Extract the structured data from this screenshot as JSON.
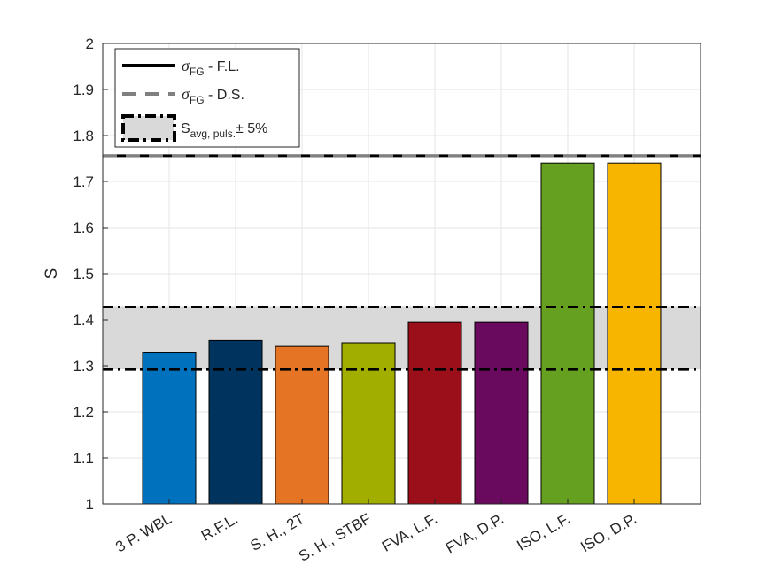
{
  "chart_data": {
    "type": "bar",
    "ylabel": "S",
    "ylim": [
      1,
      2
    ],
    "yticks": [
      1,
      1.1,
      1.2,
      1.3,
      1.4,
      1.5,
      1.6,
      1.7,
      1.8,
      1.9,
      2
    ],
    "ytick_labels": [
      "1",
      "1.1",
      "1.2",
      "1.3",
      "1.4",
      "1.5",
      "1.6",
      "1.7",
      "1.8",
      "1.9",
      "2"
    ],
    "grid": true,
    "categories": [
      "3 P. WBL",
      "R.F.L.",
      "S. H., 2T",
      "S. H., STBF",
      "FVA, L.F.",
      "FVA, D.P.",
      "ISO, L.F.",
      "ISO, D.P."
    ],
    "values": [
      1.328,
      1.355,
      1.342,
      1.35,
      1.394,
      1.394,
      1.74,
      1.74
    ],
    "bar_colors": [
      "#0072BD",
      "#00335E",
      "#E57525",
      "#A1AE00",
      "#9A0F1A",
      "#6A0A5E",
      "#66A020",
      "#F7B500"
    ],
    "reference_lines": [
      {
        "name": "σFG - F.L.",
        "value": 1.756,
        "style": "solid",
        "color": "#000000"
      },
      {
        "name": "σFG - D.S.",
        "value": 1.756,
        "style": "dashed",
        "color": "#808080"
      }
    ],
    "band": {
      "name": "Savg, puls. ± 5%",
      "lower": 1.292,
      "upper": 1.428,
      "fill": "#D9D9D9",
      "edge_style": "dashdot",
      "edge_color": "#000000"
    },
    "legend": {
      "placement": "top-left",
      "entries": [
        {
          "main": "σ",
          "sub": "FG",
          "tail": " - F.L."
        },
        {
          "main": "σ",
          "sub": "FG",
          "tail": " - D.S."
        },
        {
          "main": "S",
          "sub": "avg, puls.",
          "tail": "± 5%"
        }
      ]
    }
  }
}
